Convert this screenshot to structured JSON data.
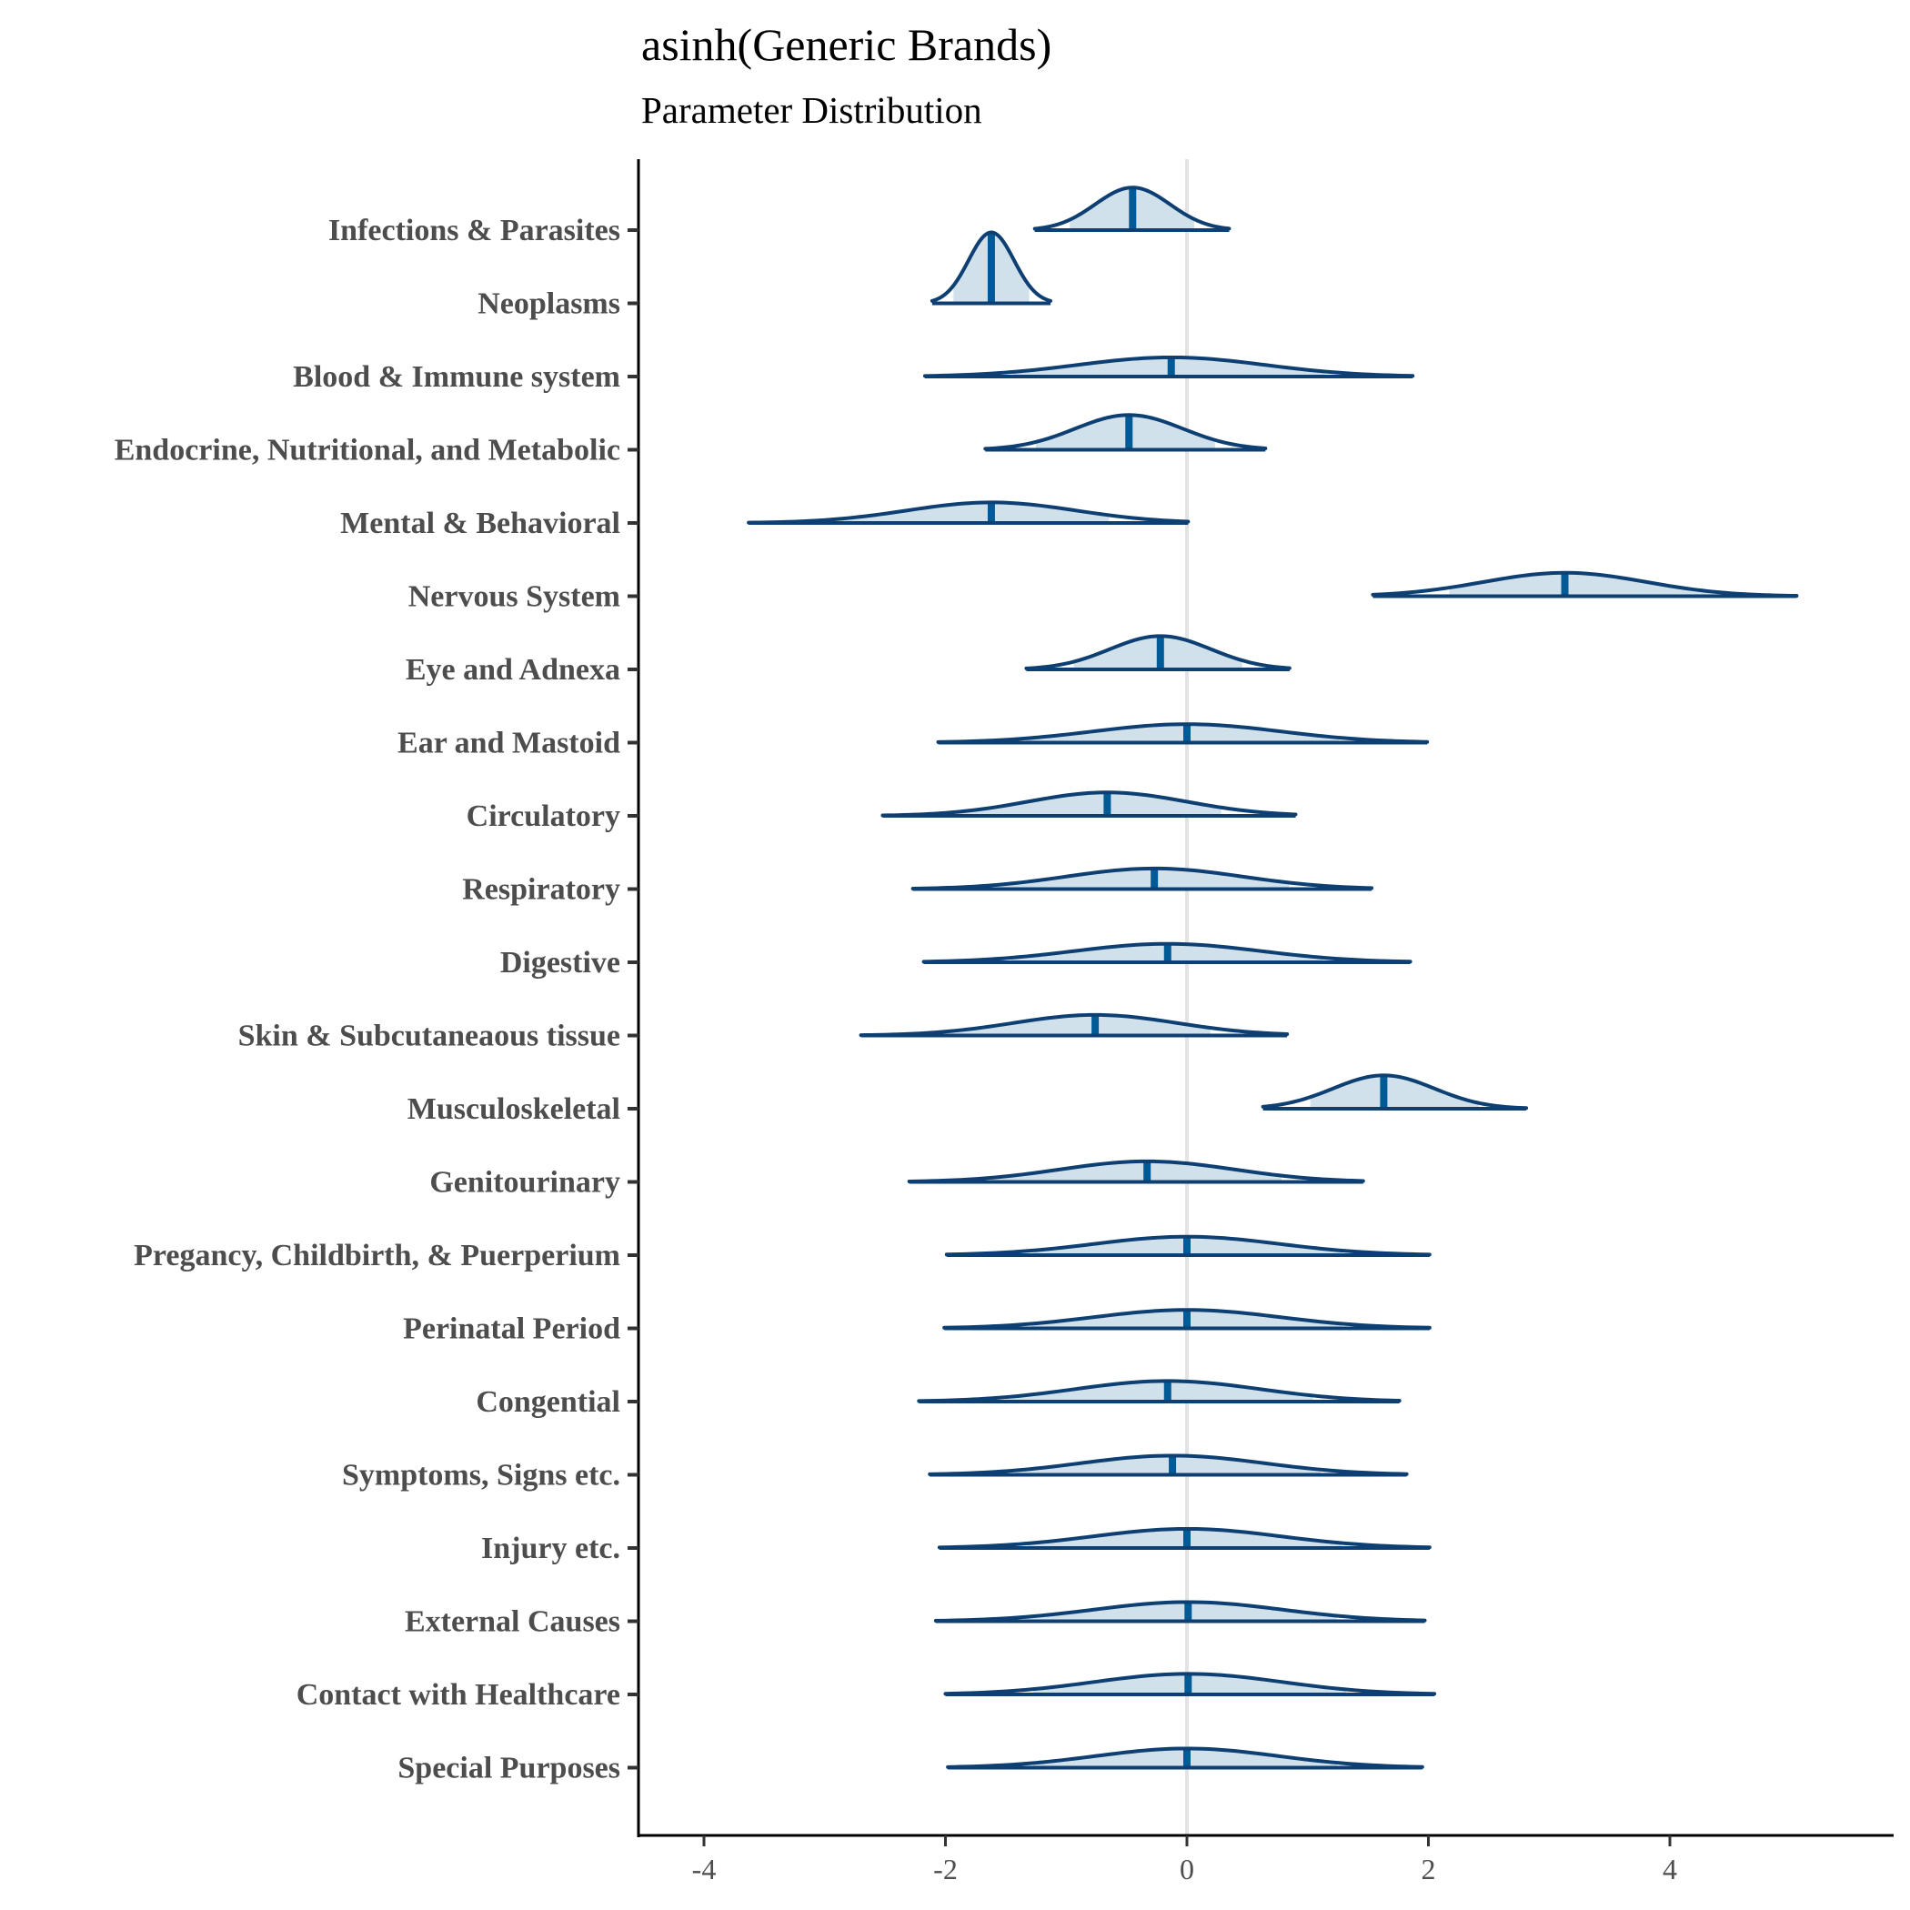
{
  "chart_data": {
    "type": "ridgeline",
    "title": "asinh(Generic Brands)",
    "subtitle": "Parameter Distribution",
    "xlabel": "",
    "ylabel": "",
    "xlim": [
      -4.5,
      5.9
    ],
    "x_ticks": [
      -4,
      -2,
      0,
      2,
      4
    ],
    "x_tick_labels": [
      "-4",
      "-2",
      "0",
      "2",
      "4"
    ],
    "reference_line_x": 0,
    "grid": false,
    "colors": {
      "outline": "#0d3f72",
      "median": "#005a96",
      "fill": "#d1e1ec",
      "reference": "#e3e3e3"
    },
    "categories": [
      {
        "label": "Infections & Parasites",
        "min": -1.26,
        "max": 0.35,
        "median": -0.45,
        "peak": 0.6
      },
      {
        "label": "Neoplasms",
        "min": -2.11,
        "max": -1.13,
        "median": -1.62,
        "peak": 1.0
      },
      {
        "label": "Blood & Immune system",
        "min": -2.17,
        "max": 1.87,
        "median": -0.13,
        "peak": 0.27
      },
      {
        "label": "Endocrine, Nutritional, and Metabolic",
        "min": -1.67,
        "max": 0.65,
        "median": -0.48,
        "peak": 0.49
      },
      {
        "label": "Mental & Behavioral",
        "min": -3.63,
        "max": 0.01,
        "median": -1.62,
        "peak": 0.29
      },
      {
        "label": "Nervous System",
        "min": 1.54,
        "max": 5.05,
        "median": 3.13,
        "peak": 0.33
      },
      {
        "label": "Eye and Adnexa",
        "min": -1.33,
        "max": 0.85,
        "median": -0.22,
        "peak": 0.47
      },
      {
        "label": "Ear and Mastoid",
        "min": -2.06,
        "max": 1.99,
        "median": 0.0,
        "peak": 0.26
      },
      {
        "label": "Circulatory",
        "min": -2.52,
        "max": 0.9,
        "median": -0.66,
        "peak": 0.33
      },
      {
        "label": "Respiratory",
        "min": -2.27,
        "max": 1.53,
        "median": -0.27,
        "peak": 0.29
      },
      {
        "label": "Digestive",
        "min": -2.18,
        "max": 1.85,
        "median": -0.16,
        "peak": 0.26
      },
      {
        "label": "Skin & Subcutaneaous tissue",
        "min": -2.7,
        "max": 0.83,
        "median": -0.76,
        "peak": 0.29
      },
      {
        "label": "Musculoskeletal",
        "min": 0.63,
        "max": 2.81,
        "median": 1.63,
        "peak": 0.47
      },
      {
        "label": "Genitourinary",
        "min": -2.3,
        "max": 1.46,
        "median": -0.33,
        "peak": 0.29
      },
      {
        "label": "Pregancy, Childbirth, & Puerperium",
        "min": -1.99,
        "max": 2.01,
        "median": 0.0,
        "peak": 0.26
      },
      {
        "label": "Perinatal Period",
        "min": -2.01,
        "max": 2.01,
        "median": 0.0,
        "peak": 0.26
      },
      {
        "label": "Congential",
        "min": -2.22,
        "max": 1.76,
        "median": -0.16,
        "peak": 0.29
      },
      {
        "label": "Symptoms, Signs etc.",
        "min": -2.13,
        "max": 1.82,
        "median": -0.12,
        "peak": 0.27
      },
      {
        "label": "Injury etc.",
        "min": -2.05,
        "max": 2.01,
        "median": 0.0,
        "peak": 0.27
      },
      {
        "label": "External Causes",
        "min": -2.08,
        "max": 1.97,
        "median": 0.01,
        "peak": 0.27
      },
      {
        "label": "Contact with Healthcare",
        "min": -2.0,
        "max": 2.05,
        "median": 0.01,
        "peak": 0.29
      },
      {
        "label": "Special Purposes",
        "min": -1.98,
        "max": 1.95,
        "median": 0.0,
        "peak": 0.27
      }
    ]
  }
}
